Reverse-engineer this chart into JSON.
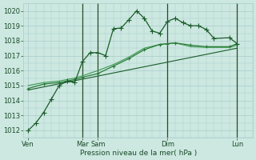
{
  "bg_color": "#cce8e0",
  "grid_color": "#aacccc",
  "line_color1": "#1a5c2a",
  "line_color2": "#2d7a3a",
  "line_color3": "#3a9a50",
  "xlabel": "Pression niveau de la mer( hPa )",
  "ylim": [
    1011.5,
    1020.5
  ],
  "yticks": [
    1012,
    1013,
    1014,
    1015,
    1016,
    1017,
    1018,
    1019,
    1020
  ],
  "vlines": [
    3.5,
    4.5,
    9.0,
    13.5
  ],
  "xtick_positions": [
    0.0,
    3.5,
    4.5,
    9.0,
    13.5
  ],
  "xtick_labels": [
    "Ven",
    "Mar",
    "Sam",
    "Dim",
    "Lun"
  ],
  "xmin": -0.3,
  "xmax": 14.5,
  "series1_x": [
    0,
    0.5,
    1.0,
    1.5,
    2.0,
    2.5,
    3.0,
    3.5,
    4.0,
    4.5,
    5.0,
    5.5,
    6.0,
    6.5,
    7.0,
    7.5,
    8.0,
    8.5,
    9.0,
    9.5,
    10.0,
    10.5,
    11.0,
    11.5,
    12.0,
    13.0,
    13.5
  ],
  "series1_y": [
    1012.0,
    1012.5,
    1013.2,
    1014.1,
    1015.0,
    1015.3,
    1015.2,
    1016.6,
    1017.2,
    1017.2,
    1017.0,
    1018.8,
    1018.85,
    1019.4,
    1020.0,
    1019.5,
    1018.65,
    1018.5,
    1019.3,
    1019.5,
    1019.2,
    1019.0,
    1019.0,
    1018.75,
    1018.15,
    1018.2,
    1017.8
  ],
  "series2_x": [
    0,
    1.0,
    2.0,
    3.0,
    3.5,
    4.5,
    5.5,
    6.5,
    7.5,
    8.5,
    9.0,
    9.5,
    10.5,
    11.5,
    13.0,
    13.5
  ],
  "series2_y": [
    1014.8,
    1015.1,
    1015.2,
    1015.4,
    1015.55,
    1015.8,
    1016.3,
    1016.8,
    1017.4,
    1017.75,
    1017.8,
    1017.85,
    1017.7,
    1017.6,
    1017.6,
    1017.8
  ],
  "series3_x": [
    0,
    1.0,
    2.0,
    3.0,
    3.5,
    4.5,
    5.5,
    6.5,
    7.5,
    8.5,
    9.0,
    9.5,
    10.5,
    11.5,
    13.0,
    13.5
  ],
  "series3_y": [
    1015.0,
    1015.2,
    1015.3,
    1015.5,
    1015.65,
    1016.0,
    1016.4,
    1016.9,
    1017.5,
    1017.75,
    1017.8,
    1017.85,
    1017.6,
    1017.55,
    1017.55,
    1017.7
  ],
  "trend_x": [
    0,
    13.5
  ],
  "trend_y": [
    1014.7,
    1017.5
  ]
}
